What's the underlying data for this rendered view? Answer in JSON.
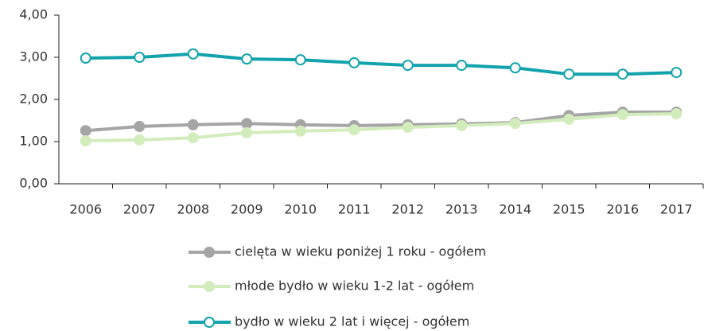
{
  "chart_data": {
    "type": "line",
    "categories": [
      "2006",
      "2007",
      "2008",
      "2009",
      "2010",
      "2011",
      "2012",
      "2013",
      "2014",
      "2015",
      "2016",
      "2017"
    ],
    "series": [
      {
        "name": "cielęta w  wieku poniżej 1 roku - ogółem",
        "color": "#a5a5a5",
        "marker_fill": "#a5a5a5",
        "values": [
          1.26,
          1.36,
          1.4,
          1.43,
          1.4,
          1.38,
          1.4,
          1.42,
          1.45,
          1.62,
          1.7,
          1.7
        ]
      },
      {
        "name": "młode bydło w wieku 1-2 lat - ogółem",
        "color": "#d3ecbc",
        "marker_fill": "#d3ecbc",
        "values": [
          1.02,
          1.04,
          1.09,
          1.21,
          1.25,
          1.28,
          1.34,
          1.38,
          1.43,
          1.53,
          1.64,
          1.66
        ]
      },
      {
        "name": "bydło w wieku 2 lat i więcej - ogółem",
        "color": "#12a3ac",
        "marker_fill": "#ffffff",
        "values": [
          2.98,
          3.0,
          3.08,
          2.96,
          2.94,
          2.87,
          2.81,
          2.81,
          2.75,
          2.6,
          2.6,
          2.64
        ]
      }
    ],
    "ylim": [
      0,
      4
    ],
    "yticks": [
      {
        "value": 0,
        "label": "0,00"
      },
      {
        "value": 1,
        "label": "1,00"
      },
      {
        "value": 2,
        "label": "2,00"
      },
      {
        "value": 3,
        "label": "3,00"
      },
      {
        "value": 4,
        "label": "4,00"
      }
    ]
  }
}
